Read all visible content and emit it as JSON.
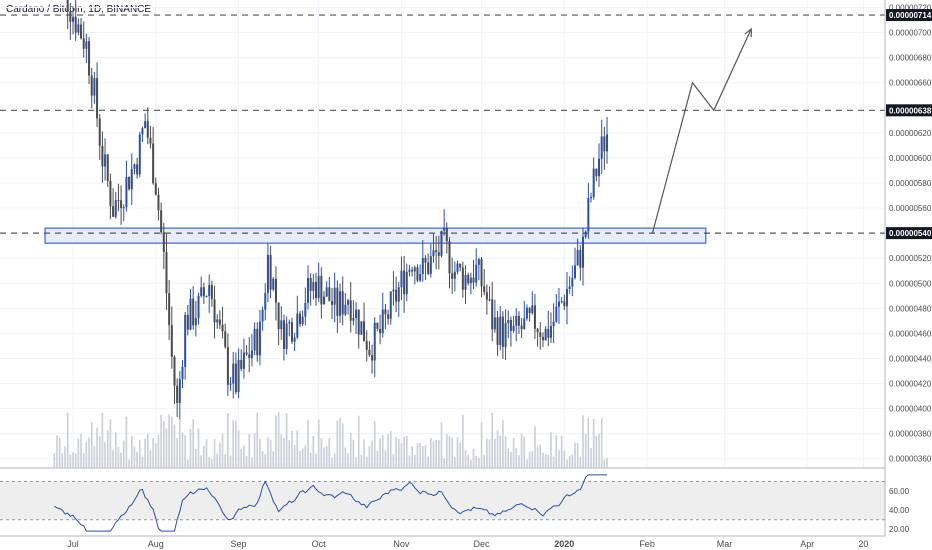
{
  "header": {
    "symbol_title": "Cardano / Bitcoin, 1D, BINANCE"
  },
  "colors": {
    "background": "#ffffff",
    "grid": "#f0f3fa",
    "candle_up": "#2d4fa3",
    "candle_down": "#4a4a4a",
    "volume": "#c9cdd6",
    "dashed_line": "#555555",
    "zone_fill": "#dbe6f7",
    "zone_border": "#3f68c9",
    "rsi_line": "#2d4fa3",
    "rsi_band": "#eeeeee",
    "axis_text": "#4a4a4a",
    "price_tag_bg": "#131722",
    "price_tag_text": "#ffffff",
    "arrow": "#555555"
  },
  "chart_data": {
    "type": "candlestick",
    "title": "Cardano / Bitcoin, 1D, BINANCE",
    "price_axis": {
      "ticks": [
        "0.00000720",
        "0.00000700",
        "0.00000680",
        "0.00000660",
        "0.00000640",
        "0.00000620",
        "0.00000600",
        "0.00000580",
        "0.00000560",
        "0.00000520",
        "0.00000500",
        "0.00000480",
        "0.00000460",
        "0.00000440",
        "0.00000420",
        "0.00000400",
        "0.00000380",
        "0.00000360"
      ],
      "range": [
        3.55e-06,
        7.3e-06
      ]
    },
    "time_axis": {
      "labels": [
        "Jul",
        "Aug",
        "Sep",
        "Oct",
        "Nov",
        "Dec",
        "2020",
        "Feb",
        "Mar",
        "Apr",
        "20"
      ],
      "label_days": [
        9,
        40,
        71,
        101,
        132,
        162,
        193,
        224,
        253,
        284,
        305
      ]
    },
    "levels": [
      {
        "price": 7.14e-06,
        "label": "0.00000714"
      },
      {
        "price": 6.38e-06,
        "label": "0.00000638"
      },
      {
        "price": 5.4e-06,
        "label": "0.00000540"
      }
    ],
    "zone": {
      "price_low": 5.32e-06,
      "price_high": 5.44e-06,
      "start_day": 9,
      "end_day": 246
    },
    "projection_path": [
      {
        "day": 226,
        "price": 5.4e-06
      },
      {
        "day": 241,
        "price": 6.6e-06
      },
      {
        "day": 249,
        "price": 6.38e-06
      },
      {
        "day": 263,
        "price": 7.03e-06
      }
    ],
    "rsi": {
      "ticks": [
        "60.00",
        "40.00",
        "20.00"
      ],
      "band": [
        30,
        70
      ],
      "range": [
        15,
        80
      ]
    },
    "ohlc_anchors": [
      {
        "day": 2,
        "close": 7.6e-06
      },
      {
        "day": 8,
        "close": 7.2e-06
      },
      {
        "day": 14,
        "close": 6.9e-06
      },
      {
        "day": 17,
        "close": 6.5e-06
      },
      {
        "day": 20,
        "close": 6e-06
      },
      {
        "day": 24,
        "close": 5.6e-06
      },
      {
        "day": 28,
        "close": 5.75e-06
      },
      {
        "day": 33,
        "close": 6e-06
      },
      {
        "day": 36,
        "close": 6.3e-06
      },
      {
        "day": 40,
        "close": 5.8e-06
      },
      {
        "day": 43,
        "close": 5.2e-06
      },
      {
        "day": 46,
        "close": 4.4e-06
      },
      {
        "day": 48,
        "close": 4e-06
      },
      {
        "day": 51,
        "close": 4.7e-06
      },
      {
        "day": 56,
        "close": 4.8e-06
      },
      {
        "day": 60,
        "close": 5e-06
      },
      {
        "day": 63,
        "close": 4.7e-06
      },
      {
        "day": 67,
        "close": 4.3e-06
      },
      {
        "day": 70,
        "close": 4.2e-06
      },
      {
        "day": 74,
        "close": 4.4e-06
      },
      {
        "day": 79,
        "close": 4.6e-06
      },
      {
        "day": 82,
        "close": 5.2e-06
      },
      {
        "day": 84,
        "close": 5e-06
      },
      {
        "day": 87,
        "close": 4.6e-06
      },
      {
        "day": 92,
        "close": 4.7e-06
      },
      {
        "day": 96,
        "close": 4.9e-06
      },
      {
        "day": 100,
        "close": 5e-06
      },
      {
        "day": 104,
        "close": 4.9e-06
      },
      {
        "day": 108,
        "close": 4.8e-06
      },
      {
        "day": 112,
        "close": 4.9e-06
      },
      {
        "day": 116,
        "close": 4.7e-06
      },
      {
        "day": 120,
        "close": 4.5e-06
      },
      {
        "day": 124,
        "close": 4.6e-06
      },
      {
        "day": 128,
        "close": 4.8e-06
      },
      {
        "day": 132,
        "close": 5e-06
      },
      {
        "day": 136,
        "close": 5.2e-06
      },
      {
        "day": 140,
        "close": 5.1e-06
      },
      {
        "day": 144,
        "close": 5.2e-06
      },
      {
        "day": 148,
        "close": 5.3e-06
      },
      {
        "day": 152,
        "close": 5.1e-06
      },
      {
        "day": 156,
        "close": 5.05e-06
      },
      {
        "day": 160,
        "close": 5.1e-06
      },
      {
        "day": 163,
        "close": 4.95e-06
      },
      {
        "day": 166,
        "close": 4.7e-06
      },
      {
        "day": 170,
        "close": 4.6e-06
      },
      {
        "day": 174,
        "close": 4.6e-06
      },
      {
        "day": 178,
        "close": 4.65e-06
      },
      {
        "day": 182,
        "close": 4.7e-06
      },
      {
        "day": 186,
        "close": 4.6e-06
      },
      {
        "day": 189,
        "close": 4.7e-06
      },
      {
        "day": 193,
        "close": 4.9e-06
      },
      {
        "day": 197,
        "close": 5.1e-06
      },
      {
        "day": 200,
        "close": 5.3e-06
      },
      {
        "day": 203,
        "close": 5.7e-06
      },
      {
        "day": 206,
        "close": 6e-06
      },
      {
        "day": 209,
        "close": 6.2e-06
      }
    ]
  }
}
